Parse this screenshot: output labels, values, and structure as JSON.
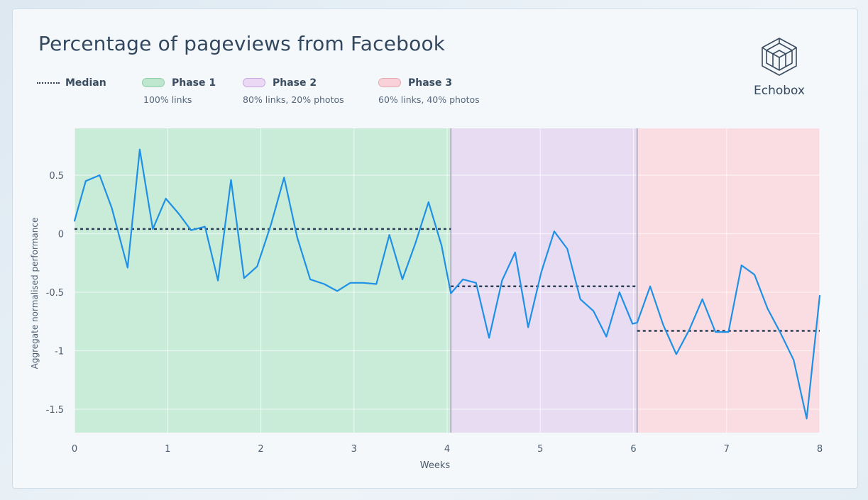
{
  "brand": {
    "name": "Echobox",
    "logo_icon": "echobox-cube-icon"
  },
  "legend": {
    "median_label": "Median",
    "phases": [
      {
        "label": "Phase 1",
        "sub": "100% links",
        "color": "#bfe6cf"
      },
      {
        "label": "Phase 2",
        "sub": "80% links, 20% photos",
        "color": "#e7d6f2"
      },
      {
        "label": "Phase 3",
        "sub": "60% links, 40% photos",
        "color": "#f8d5da"
      }
    ]
  },
  "chart_data": {
    "type": "line",
    "title": "Percentage of pageviews from Facebook",
    "xlabel": "Weeks",
    "ylabel": "Aggregate normalised performance",
    "xlim": [
      0,
      8
    ],
    "ylim": [
      -1.7,
      0.9
    ],
    "xticks": [
      0,
      1,
      2,
      3,
      4,
      5,
      6,
      7,
      8
    ],
    "yticks": [
      0.5,
      0,
      -0.5,
      -1,
      -1.5
    ],
    "ytick_labels": [
      "0.5",
      "0",
      "-0.5",
      "-1",
      "-1.5"
    ],
    "grid": true,
    "line_color": "#1e90e6",
    "median_color": "#2e3f55",
    "phases": [
      {
        "name": "Phase 1",
        "x_start": 0,
        "x_end": 4.04,
        "color": "#c9ecd9"
      },
      {
        "name": "Phase 2",
        "x_start": 4.04,
        "x_end": 6.04,
        "color": "#e8dcf3"
      },
      {
        "name": "Phase 3",
        "x_start": 6.04,
        "x_end": 8,
        "color": "#f9dde2"
      }
    ],
    "medians": [
      {
        "name": "Phase 1",
        "x_start": 0,
        "x_end": 4.04,
        "value": 0.04
      },
      {
        "name": "Phase 2",
        "x_start": 4.04,
        "x_end": 6.04,
        "value": -0.45
      },
      {
        "name": "Phase 3",
        "x_start": 6.04,
        "x_end": 8,
        "value": -0.83
      }
    ],
    "series": [
      {
        "x": [
          0,
          0.12,
          0.27,
          0.4,
          0.57,
          0.7,
          0.84,
          0.98,
          1.12,
          1.25,
          1.4,
          1.54,
          1.68,
          1.82,
          1.96,
          2.11,
          2.25,
          2.39,
          2.53,
          2.68,
          2.82,
          2.96,
          3.1,
          3.24,
          3.38,
          3.52,
          3.66,
          3.8,
          3.94,
          4.04,
          4.17,
          4.31,
          4.45,
          4.59,
          4.73,
          4.87,
          5.01,
          5.15,
          5.29,
          5.43,
          5.57,
          5.71,
          5.85,
          5.99,
          6.04,
          6.18,
          6.32,
          6.46,
          6.6,
          6.74,
          6.88,
          7.02,
          7.16,
          7.3,
          7.44,
          7.58,
          7.72,
          7.86,
          8
        ],
        "values": [
          0.11,
          0.45,
          0.5,
          0.22,
          -0.29,
          0.72,
          0.04,
          0.3,
          0.17,
          0.03,
          0.06,
          -0.4,
          0.46,
          -0.38,
          -0.28,
          0.08,
          0.48,
          -0.03,
          -0.39,
          -0.43,
          -0.49,
          -0.42,
          -0.42,
          -0.43,
          -0.01,
          -0.39,
          -0.08,
          0.27,
          -0.1,
          -0.51,
          -0.39,
          -0.42,
          -0.89,
          -0.4,
          -0.16,
          -0.8,
          -0.33,
          0.02,
          -0.13,
          -0.56,
          -0.66,
          -0.88,
          -0.5,
          -0.77,
          -0.76,
          -0.45,
          -0.78,
          -1.03,
          -0.82,
          -0.56,
          -0.84,
          -0.84,
          -0.27,
          -0.35,
          -0.64,
          -0.85,
          -1.08,
          -1.58,
          -0.53
        ]
      }
    ]
  }
}
